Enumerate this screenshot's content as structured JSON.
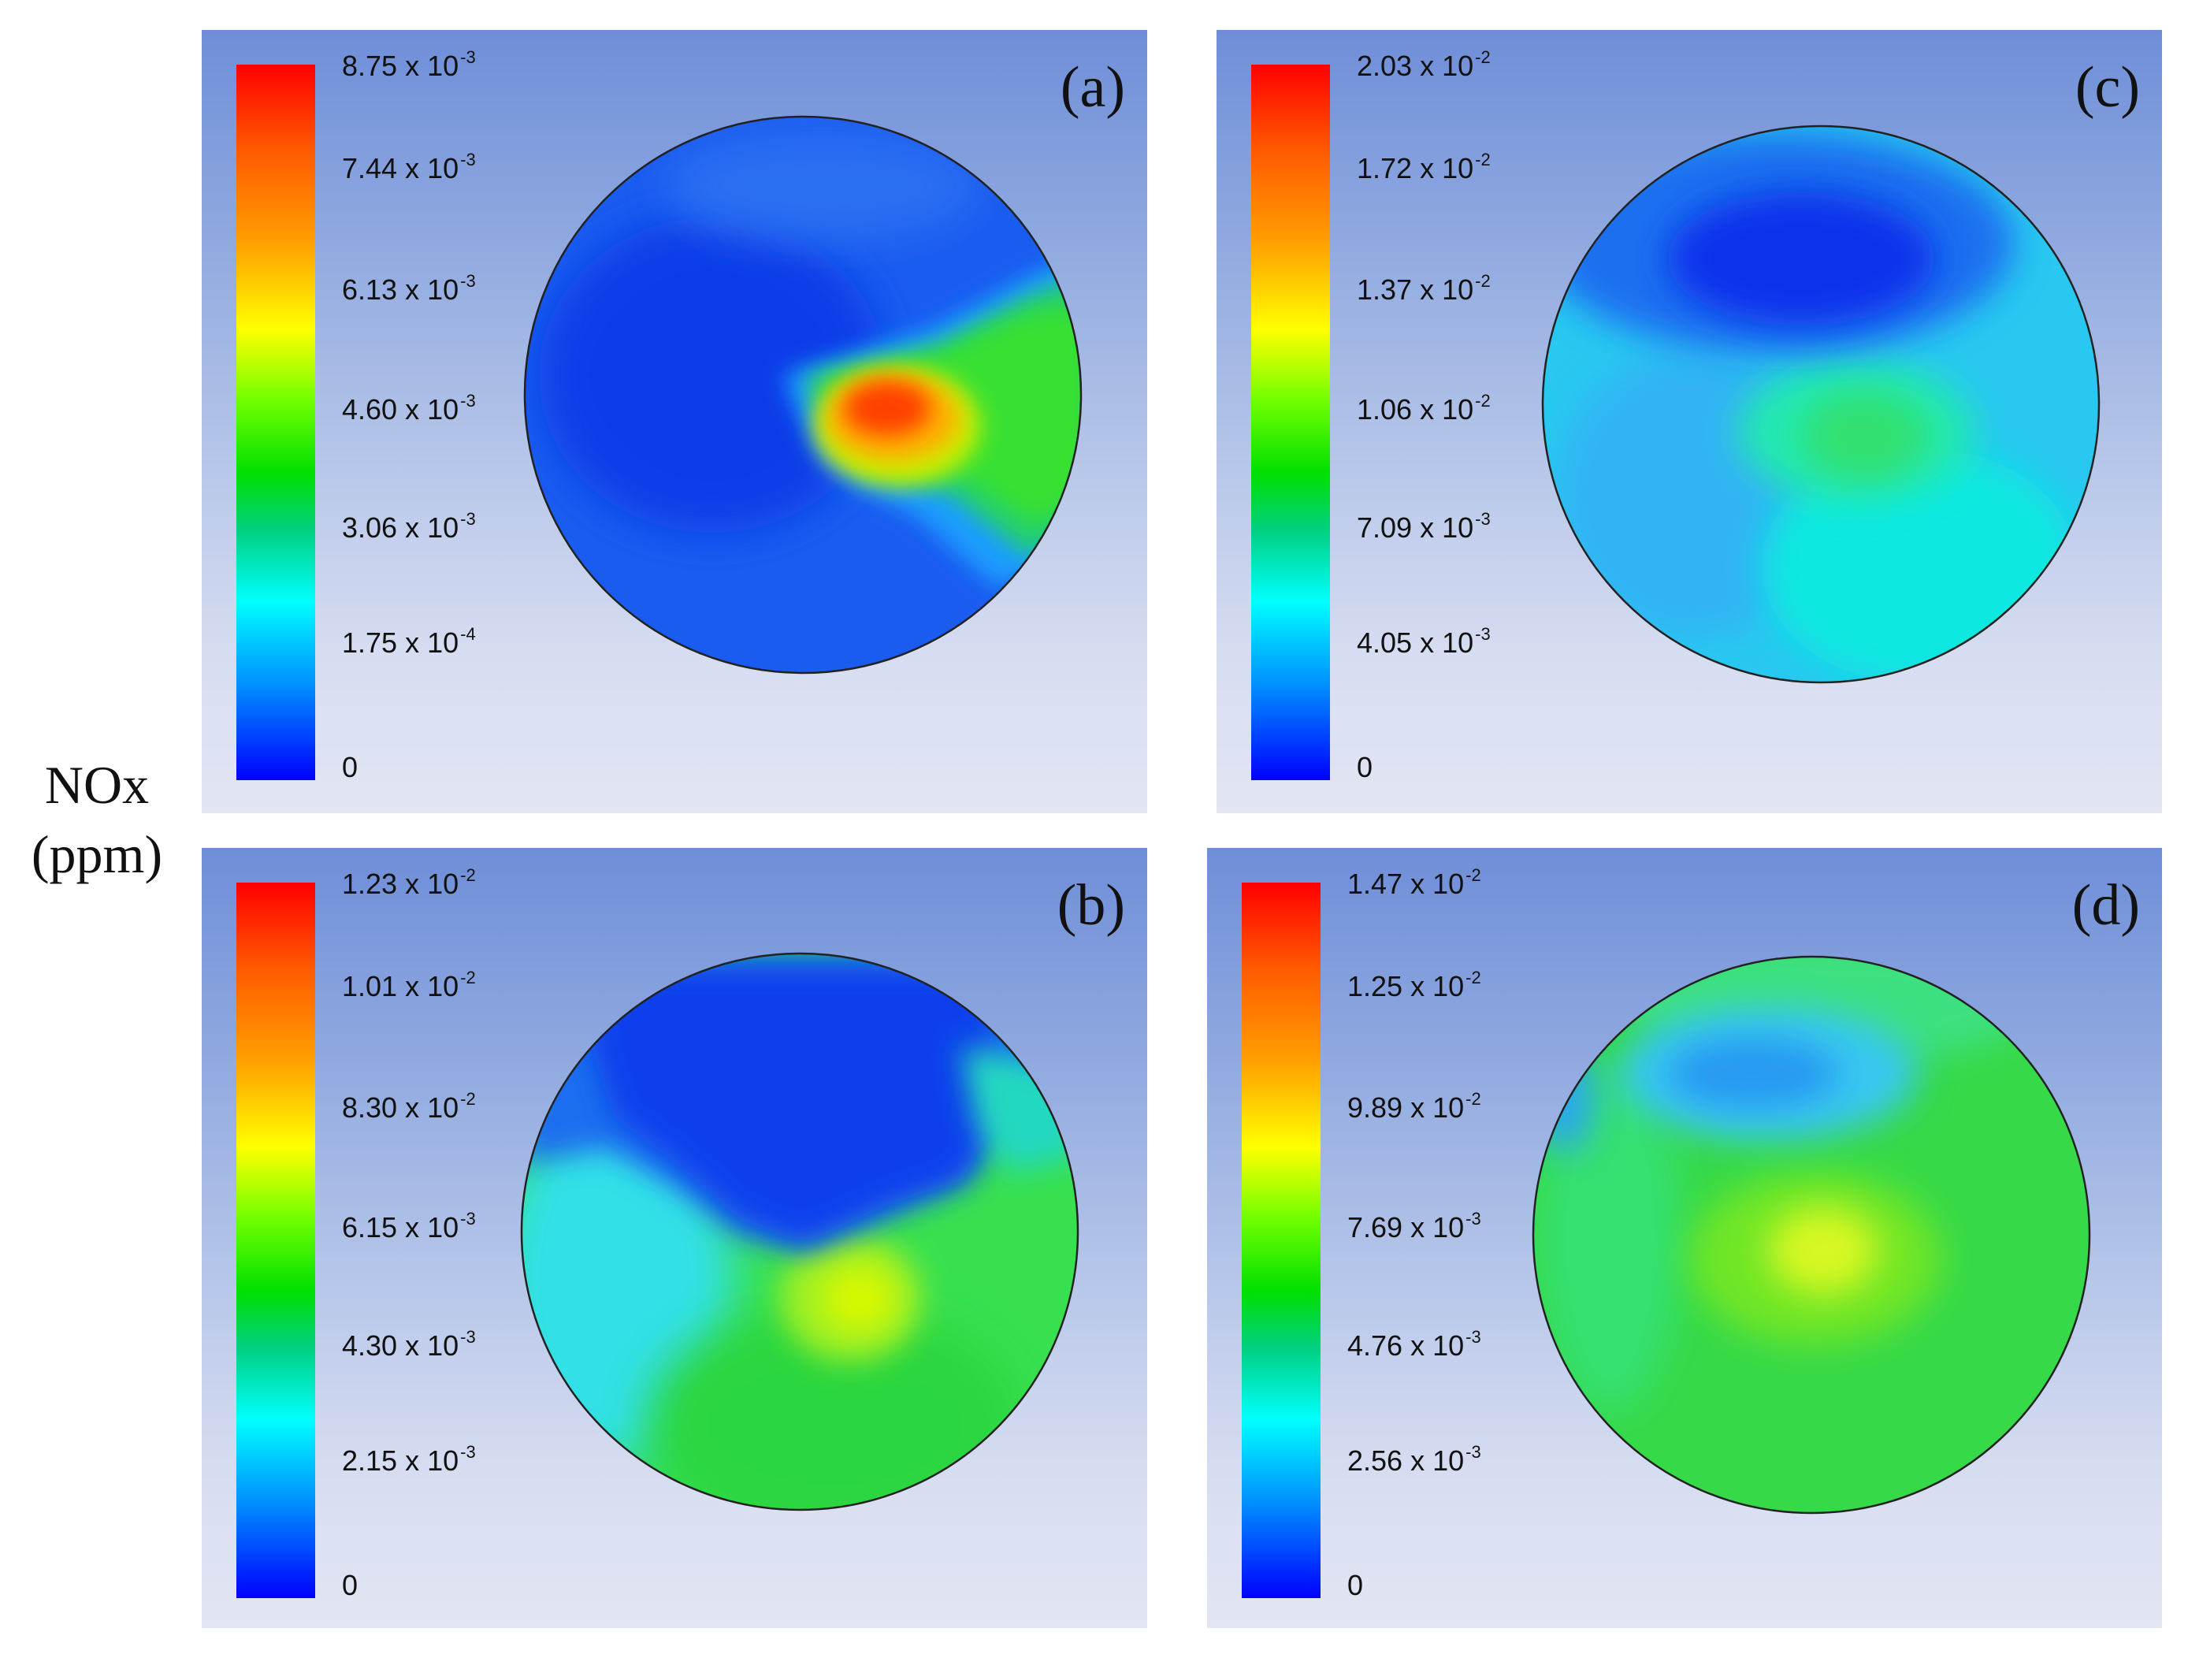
{
  "side_label": {
    "line1": "NOx",
    "line2": "(ppm)"
  },
  "panels": [
    {
      "id": "a",
      "label": "(a)",
      "ticks": [
        {
          "mant": "8.75 x 10",
          "exp": "-3"
        },
        {
          "mant": "7.44 x 10",
          "exp": "-3"
        },
        {
          "mant": "6.13 x 10",
          "exp": "-3"
        },
        {
          "mant": "4.60 x 10",
          "exp": "-3"
        },
        {
          "mant": "3.06 x 10",
          "exp": "-3"
        },
        {
          "mant": "1.75 x 10",
          "exp": "-4"
        },
        {
          "mant": "0",
          "exp": ""
        }
      ]
    },
    {
      "id": "b",
      "label": "(b)",
      "ticks": [
        {
          "mant": "1.23 x 10",
          "exp": "-2"
        },
        {
          "mant": "1.01 x 10",
          "exp": "-2"
        },
        {
          "mant": "8.30 x 10",
          "exp": "-2"
        },
        {
          "mant": "6.15 x 10",
          "exp": "-3"
        },
        {
          "mant": "4.30 x 10",
          "exp": "-3"
        },
        {
          "mant": "2.15 x 10",
          "exp": "-3"
        },
        {
          "mant": "0",
          "exp": ""
        }
      ]
    },
    {
      "id": "c",
      "label": "(c)",
      "ticks": [
        {
          "mant": "2.03 x 10",
          "exp": "-2"
        },
        {
          "mant": "1.72 x 10",
          "exp": "-2"
        },
        {
          "mant": "1.37 x 10",
          "exp": "-2"
        },
        {
          "mant": "1.06 x 10",
          "exp": "-2"
        },
        {
          "mant": "7.09 x 10",
          "exp": "-3"
        },
        {
          "mant": "4.05 x 10",
          "exp": "-3"
        },
        {
          "mant": "0",
          "exp": ""
        }
      ]
    },
    {
      "id": "d",
      "label": "(d)",
      "ticks": [
        {
          "mant": "1.47 x 10",
          "exp": "-2"
        },
        {
          "mant": "1.25 x 10",
          "exp": "-2"
        },
        {
          "mant": "9.89 x 10",
          "exp": "-2"
        },
        {
          "mant": "7.69 x 10",
          "exp": "-3"
        },
        {
          "mant": "4.76 x 10",
          "exp": "-3"
        },
        {
          "mant": "2.56 x 10",
          "exp": "-3"
        },
        {
          "mant": "0",
          "exp": ""
        }
      ]
    }
  ],
  "colors": {
    "max": "#ff0000",
    "orange": "#ff8000",
    "yellow": "#ffff00",
    "green": "#00dd00",
    "cyan": "#00ffff",
    "light_blue": "#008cff",
    "min": "#0000ff"
  }
}
